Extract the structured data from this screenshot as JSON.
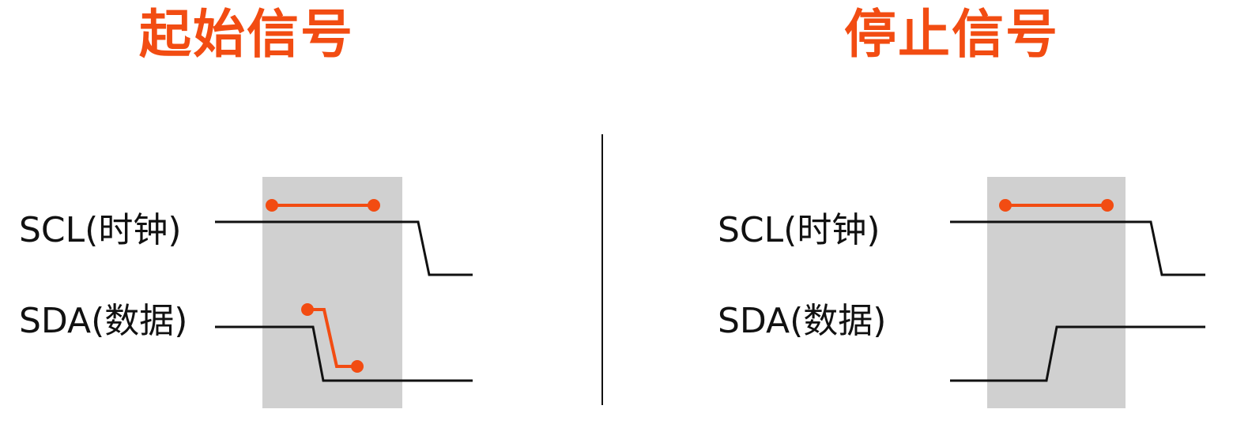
{
  "colors": {
    "accent": "#f24c12",
    "shade": "#d0d0d0",
    "line": "#111111"
  },
  "start_panel": {
    "title": "起始信号",
    "scl_label": "SCL(时钟)",
    "sda_label": "SDA(数据)"
  },
  "stop_panel": {
    "title": "停止信号",
    "scl_label": "SCL(时钟)",
    "sda_label": "SDA(数据)"
  }
}
